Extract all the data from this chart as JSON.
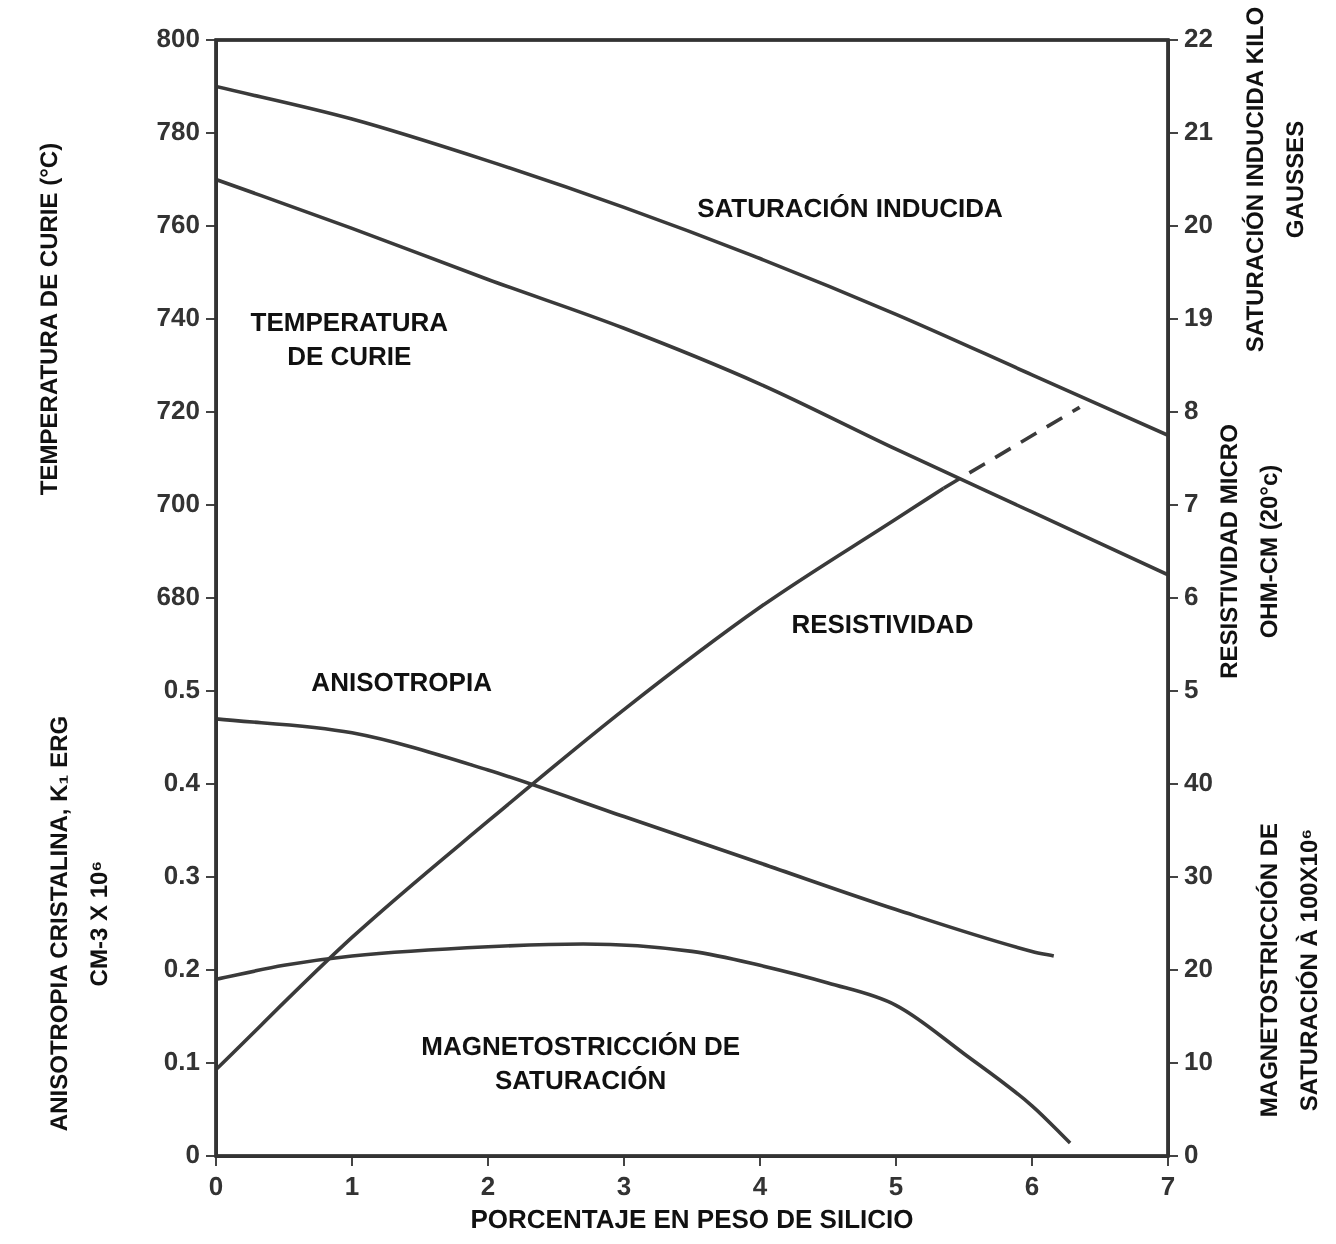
{
  "chart_data": [
    {
      "type": "line",
      "xlabel": "PORCENTAJE EN PESO DE SILICIO",
      "ylabel": "TEMPERATURA DE CURIE (°C)",
      "y2label": "SATURACIÓN INDUCIDA KILO GAUSSES",
      "xlim": [
        0,
        7
      ],
      "xticks": [
        0,
        1,
        2,
        3,
        4,
        5,
        6,
        7
      ],
      "ylim": [
        560,
        800
      ],
      "yticks": [
        680,
        700,
        720,
        740,
        760,
        780,
        800
      ],
      "y2lim": [
        10,
        22
      ],
      "y2ticks": [
        19,
        20,
        21,
        22
      ],
      "legend": false,
      "marker": "none",
      "series": [
        {
          "name": "SATURACIÓN INDUCIDA",
          "axis": "y2",
          "color": "#3a3a3a",
          "x": [
            0,
            1,
            2,
            3,
            4,
            5,
            6,
            7
          ],
          "values": [
            21.5,
            21.15,
            20.7,
            20.2,
            19.65,
            19.05,
            18.4,
            17.75
          ]
        },
        {
          "name": "TEMPERATURA DE CURIE",
          "color": "#3a3a3a",
          "x": [
            0,
            1,
            2,
            3,
            4,
            5,
            6,
            7
          ],
          "values": [
            770,
            759.5,
            748.5,
            738,
            726,
            712,
            698.5,
            685
          ]
        }
      ]
    },
    {
      "type": "line",
      "ylabel": "ANISOTROPIA CRISTALINA, K₁ ERG CM-3 X 10⁶",
      "y2label": "RESISTIVIDAD MICRO OHM-CM (20°c)",
      "xlim": [
        0,
        7
      ],
      "tick_labels": "y",
      "ylim": [
        0,
        1.2
      ],
      "yticks": [
        0,
        0.1,
        0.2,
        0.3,
        0.4,
        0.5
      ],
      "y2lim": [
        0,
        12
      ],
      "y2ticks": [
        5,
        6,
        7,
        8
      ],
      "legend": false,
      "marker": "none",
      "series": [
        {
          "name": "RESISTIVIDAD",
          "axis": "y2",
          "color": "#3a3a3a",
          "x": [
            0,
            1,
            2,
            3,
            4,
            5,
            5.35
          ],
          "values": [
            0.93,
            2.35,
            3.6,
            4.8,
            5.9,
            6.85,
            7.18
          ]
        },
        {
          "axis": "y2",
          "color": "#3a3a3a",
          "line_style": "dashed",
          "x": [
            5.35,
            6.35
          ],
          "values": [
            7.18,
            8.05
          ]
        },
        {
          "name": "ANISOTROPIA",
          "color": "#3a3a3a",
          "x": [
            0,
            1,
            2,
            3,
            4,
            5,
            6,
            6.16
          ],
          "values": [
            0.47,
            0.455,
            0.415,
            0.365,
            0.315,
            0.265,
            0.22,
            0.215
          ]
        }
      ]
    },
    {
      "type": "line",
      "y2label": "MAGNETOSTRICCIÓN DE SATURACIÓN À 100X10⁶",
      "xlim": [
        0,
        7
      ],
      "tick_labels": "y",
      "y2lim": [
        0,
        120
      ],
      "y2ticks": [
        0,
        10,
        20,
        30,
        40
      ],
      "legend": false,
      "marker": "none",
      "series": [
        {
          "name": "MAGNETOSTRICCIÓN DE SATURACIÓN",
          "axis": "y2",
          "color": "#3a3a3a",
          "x": [
            0,
            0.5,
            1,
            2,
            2.7,
            3.5,
            4,
            4.5,
            5,
            5.5,
            6,
            6.28
          ],
          "values": [
            19,
            20.5,
            21.5,
            22.5,
            22.8,
            22,
            20.5,
            18.6,
            16.2,
            11,
            5.4,
            1.4
          ]
        }
      ]
    }
  ]
}
